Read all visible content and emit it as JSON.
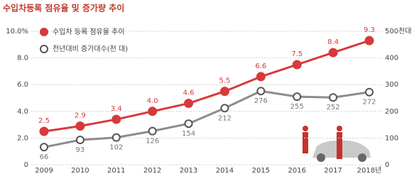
{
  "chart_data": {
    "type": "line",
    "title": "수입차등록 점유율 및 증가량 추이",
    "categories": [
      "2009",
      "2010",
      "2011",
      "2012",
      "2013",
      "2014",
      "2015",
      "2016",
      "2017",
      "2018년"
    ],
    "series": [
      {
        "name": "수입차 등록 점유율 추이",
        "color": "#d8393b",
        "values": [
          2.5,
          2.9,
          3.4,
          4.0,
          4.6,
          5.5,
          6.6,
          7.5,
          8.4,
          9.3
        ],
        "value_labels": [
          "2.5",
          "2.9",
          "3.4",
          "4.0",
          "4.6",
          "5.5",
          "6.6",
          "7.5",
          "8.4",
          "9.3"
        ]
      },
      {
        "name": "전년대비 증가대수(천 대)",
        "color": "#8c8c8c",
        "axis": "y2",
        "values": [
          66,
          93,
          102,
          126,
          154,
          212,
          276,
          255,
          252,
          272
        ]
      }
    ],
    "ylim": [
      0,
      10
    ],
    "yticks": [
      0,
      {
        "value": 2,
        "label": "2.0"
      },
      {
        "value": 4,
        "label": "4.0"
      },
      {
        "value": 6,
        "label": "6.0"
      },
      {
        "value": 8,
        "label": "8.0"
      },
      {
        "value": 10,
        "label": "10.0%"
      }
    ],
    "y2lim": [
      0,
      500
    ],
    "y2ticks": [
      0,
      100,
      200,
      300,
      400,
      {
        "value": 500,
        "label": "500천대"
      }
    ],
    "grid": true
  }
}
